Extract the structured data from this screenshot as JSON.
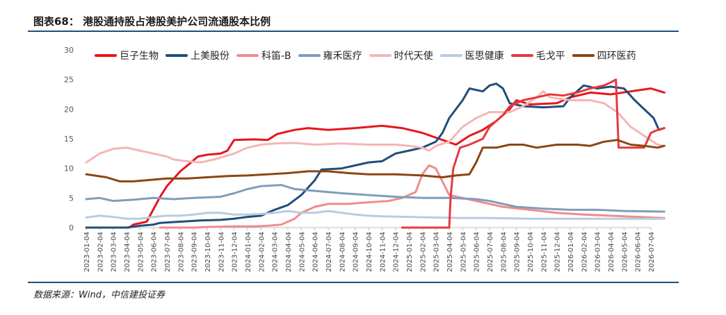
{
  "header": {
    "title": "图表68： 港股通持股占港股美护公司流通股本比例"
  },
  "footer": {
    "source": "数据来源：Wind，中信建投证券"
  },
  "chart_data": {
    "type": "line",
    "title": "图表68： 港股通持股占港股美护公司流通股本比例",
    "ylim": [
      0,
      30
    ],
    "yticks": [
      0,
      5,
      10,
      15,
      20,
      25,
      30
    ],
    "xlabels": [
      "2023-01-04",
      "2023-02-04",
      "2023-03-04",
      "2023-04-04",
      "2023-05-04",
      "2023-06-04",
      "2023-07-04",
      "2023-08-04",
      "2023-09-04",
      "2023-10-04",
      "2023-11-04",
      "2023-12-04",
      "2024-01-04",
      "2024-02-04",
      "2024-03-04",
      "2024-04-04",
      "2024-05-04",
      "2024-06-04",
      "2024-07-04",
      "2024-08-04",
      "2024-09-04",
      "2024-10-04",
      "2024-11-04",
      "2024-12-04",
      "2025-01-04",
      "2025-02-04",
      "2025-03-04",
      "2025-04-04",
      "2025-05-04",
      "2025-06-04",
      "2025-07-04",
      "2025-08-04",
      "2025-09-04",
      "2025-10-04",
      "2025-11-04",
      "2025-12-04",
      "2026-01-04",
      "2026-02-04",
      "2026-03-04",
      "2026-04-04",
      "2026-05-04",
      "2026-06-04",
      "2026-07-04"
    ],
    "legend_position": "top",
    "series": [
      {
        "name": "巨子生物",
        "color": "#e8141c",
        "width": 3,
        "points": [
          [
            3.2,
            0
          ],
          [
            3.5,
            0.5
          ],
          [
            4.5,
            1.0
          ],
          [
            5.5,
            5.2
          ],
          [
            6.0,
            7.0
          ],
          [
            7.0,
            9.5
          ],
          [
            7.8,
            11.0
          ],
          [
            8.3,
            12.0
          ],
          [
            9.0,
            12.3
          ],
          [
            10.0,
            12.5
          ],
          [
            10.5,
            13.0
          ],
          [
            11.0,
            14.8
          ],
          [
            12.5,
            14.9
          ],
          [
            13.5,
            14.8
          ],
          [
            14.2,
            15.8
          ],
          [
            15.5,
            16.5
          ],
          [
            16.5,
            16.8
          ],
          [
            18.0,
            16.5
          ],
          [
            20.0,
            16.8
          ],
          [
            22.0,
            17.2
          ],
          [
            23.5,
            16.8
          ],
          [
            25.0,
            16.0
          ],
          [
            26.5,
            14.8
          ],
          [
            27.5,
            14.0
          ],
          [
            28.5,
            15.5
          ],
          [
            29.5,
            16.5
          ],
          [
            30.5,
            18.0
          ],
          [
            31.5,
            20.0
          ],
          [
            32.0,
            21.5
          ],
          [
            33.0,
            20.8
          ],
          [
            35.0,
            21.0
          ],
          [
            36.0,
            22.0
          ],
          [
            37.5,
            22.8
          ],
          [
            39.0,
            22.5
          ],
          [
            40.5,
            23.0
          ],
          [
            42.0,
            23.5
          ],
          [
            43.0,
            22.8
          ]
        ]
      },
      {
        "name": "上美股份",
        "color": "#1f4e79",
        "width": 3,
        "points": [
          [
            0,
            0
          ],
          [
            3.0,
            0
          ],
          [
            4.0,
            0.3
          ],
          [
            5.0,
            0.5
          ],
          [
            5.5,
            0.8
          ],
          [
            7.0,
            1.0
          ],
          [
            8.5,
            1.2
          ],
          [
            10.0,
            1.3
          ],
          [
            11.0,
            1.5
          ],
          [
            12.0,
            1.8
          ],
          [
            13.0,
            2.0
          ],
          [
            14.0,
            3.0
          ],
          [
            15.0,
            3.8
          ],
          [
            16.0,
            5.5
          ],
          [
            17.0,
            8.0
          ],
          [
            17.5,
            9.8
          ],
          [
            19.0,
            10.0
          ],
          [
            20.0,
            10.5
          ],
          [
            21.0,
            11.0
          ],
          [
            22.0,
            11.2
          ],
          [
            23.0,
            12.5
          ],
          [
            24.0,
            13.0
          ],
          [
            25.0,
            13.5
          ],
          [
            26.0,
            14.5
          ],
          [
            26.5,
            16.0
          ],
          [
            27.0,
            18.5
          ],
          [
            28.0,
            21.5
          ],
          [
            28.5,
            23.5
          ],
          [
            29.5,
            23.0
          ],
          [
            30.0,
            24.0
          ],
          [
            30.5,
            24.3
          ],
          [
            31.0,
            23.5
          ],
          [
            31.5,
            21.0
          ],
          [
            32.5,
            20.5
          ],
          [
            34.0,
            20.3
          ],
          [
            35.5,
            20.5
          ],
          [
            36.0,
            22.0
          ],
          [
            37.0,
            24.0
          ],
          [
            38.0,
            23.5
          ],
          [
            39.0,
            23.8
          ],
          [
            40.0,
            23.5
          ],
          [
            40.8,
            21.5
          ],
          [
            41.5,
            20.0
          ],
          [
            42.2,
            18.5
          ],
          [
            42.6,
            16.5
          ],
          [
            43.0,
            16.8
          ]
        ]
      },
      {
        "name": "科笛-B",
        "color": "#f08c8c",
        "width": 3,
        "points": [
          [
            5.5,
            0
          ],
          [
            8.0,
            0
          ],
          [
            9.0,
            0.1
          ],
          [
            11.0,
            0.2
          ],
          [
            12.5,
            0.2
          ],
          [
            13.5,
            0.3
          ],
          [
            14.5,
            0.5
          ],
          [
            15.5,
            1.5
          ],
          [
            16.0,
            2.5
          ],
          [
            17.0,
            3.5
          ],
          [
            18.0,
            4.0
          ],
          [
            19.5,
            4.0
          ],
          [
            20.5,
            4.2
          ],
          [
            22.5,
            4.5
          ],
          [
            23.5,
            5.0
          ],
          [
            24.5,
            6.0
          ],
          [
            25.0,
            9.0
          ],
          [
            25.5,
            10.5
          ],
          [
            26.0,
            10.0
          ],
          [
            27.0,
            5.5
          ],
          [
            28.0,
            5.0
          ],
          [
            29.0,
            4.5
          ],
          [
            30.0,
            4.0
          ],
          [
            31.0,
            3.5
          ],
          [
            33.0,
            3.0
          ],
          [
            35.0,
            2.5
          ],
          [
            37.0,
            2.2
          ],
          [
            39.0,
            2.0
          ],
          [
            41.0,
            1.8
          ],
          [
            43.0,
            1.6
          ]
        ]
      },
      {
        "name": "雍禾医疗",
        "color": "#7f9db9",
        "width": 3,
        "points": [
          [
            0,
            4.8
          ],
          [
            1.0,
            5.0
          ],
          [
            2.0,
            4.5
          ],
          [
            3.5,
            4.7
          ],
          [
            5.0,
            5.0
          ],
          [
            6.5,
            4.8
          ],
          [
            8.0,
            5.0
          ],
          [
            10.0,
            5.2
          ],
          [
            11.0,
            5.8
          ],
          [
            12.0,
            6.5
          ],
          [
            13.0,
            7.0
          ],
          [
            14.5,
            7.2
          ],
          [
            15.5,
            6.5
          ],
          [
            17.0,
            6.2
          ],
          [
            19.0,
            5.8
          ],
          [
            21.0,
            5.5
          ],
          [
            23.0,
            5.2
          ],
          [
            25.0,
            5.0
          ],
          [
            27.0,
            5.0
          ],
          [
            29.0,
            4.8
          ],
          [
            30.0,
            4.5
          ],
          [
            31.0,
            4.0
          ],
          [
            32.0,
            3.5
          ],
          [
            34.0,
            3.2
          ],
          [
            36.0,
            3.0
          ],
          [
            38.0,
            3.0
          ],
          [
            40.0,
            2.8
          ],
          [
            43.0,
            2.7
          ]
        ]
      },
      {
        "name": "时代天使",
        "color": "#f5b5b5",
        "width": 3,
        "points": [
          [
            0,
            11.0
          ],
          [
            1.0,
            12.5
          ],
          [
            2.0,
            13.3
          ],
          [
            3.0,
            13.5
          ],
          [
            4.0,
            13.0
          ],
          [
            5.0,
            12.5
          ],
          [
            6.0,
            12.0
          ],
          [
            6.5,
            11.5
          ],
          [
            7.5,
            11.2
          ],
          [
            8.5,
            11.0
          ],
          [
            9.5,
            11.5
          ],
          [
            11.0,
            12.5
          ],
          [
            12.0,
            13.5
          ],
          [
            13.0,
            14.0
          ],
          [
            14.0,
            14.2
          ],
          [
            15.5,
            14.3
          ],
          [
            17.0,
            14.0
          ],
          [
            19.0,
            14.2
          ],
          [
            21.0,
            14.0
          ],
          [
            23.0,
            14.0
          ],
          [
            24.0,
            13.8
          ],
          [
            25.0,
            13.5
          ],
          [
            25.5,
            13.0
          ],
          [
            26.0,
            13.8
          ],
          [
            27.0,
            14.5
          ],
          [
            28.0,
            17.0
          ],
          [
            29.0,
            18.5
          ],
          [
            30.0,
            19.5
          ],
          [
            31.5,
            19.5
          ],
          [
            32.5,
            20.5
          ],
          [
            33.5,
            22.0
          ],
          [
            34.0,
            23.0
          ],
          [
            34.5,
            22.0
          ],
          [
            36.0,
            21.5
          ],
          [
            37.5,
            21.5
          ],
          [
            38.5,
            21.0
          ],
          [
            39.5,
            19.5
          ],
          [
            40.5,
            17.0
          ],
          [
            41.5,
            15.5
          ],
          [
            42.5,
            14.0
          ],
          [
            43.0,
            13.8
          ]
        ]
      },
      {
        "name": "医思健康",
        "color": "#b8cce0",
        "width": 3,
        "points": [
          [
            0,
            1.7
          ],
          [
            1.0,
            2.0
          ],
          [
            2.0,
            1.8
          ],
          [
            3.0,
            1.5
          ],
          [
            4.0,
            1.5
          ],
          [
            5.0,
            1.8
          ],
          [
            6.0,
            2.0
          ],
          [
            7.0,
            2.0
          ],
          [
            8.0,
            2.2
          ],
          [
            9.0,
            2.5
          ],
          [
            10.0,
            2.5
          ],
          [
            11.0,
            2.2
          ],
          [
            12.0,
            2.2
          ],
          [
            13.0,
            2.3
          ],
          [
            14.0,
            2.5
          ],
          [
            15.0,
            2.8
          ],
          [
            16.0,
            2.5
          ],
          [
            17.0,
            2.5
          ],
          [
            18.0,
            2.8
          ],
          [
            19.0,
            2.5
          ],
          [
            20.0,
            2.2
          ],
          [
            21.0,
            2.0
          ],
          [
            22.0,
            1.9
          ],
          [
            24.0,
            1.8
          ],
          [
            26.0,
            1.7
          ],
          [
            28.0,
            1.6
          ],
          [
            30.0,
            1.6
          ],
          [
            33.0,
            1.5
          ],
          [
            36.0,
            1.5
          ],
          [
            39.0,
            1.5
          ],
          [
            43.0,
            1.5
          ]
        ]
      },
      {
        "name": "毛戈平",
        "color": "#e8373f",
        "width": 3,
        "points": [
          [
            23.5,
            0
          ],
          [
            26.8,
            0
          ],
          [
            27.0,
            0
          ],
          [
            27.1,
            5.0
          ],
          [
            27.3,
            10.0
          ],
          [
            27.8,
            13.5
          ],
          [
            28.5,
            14.0
          ],
          [
            29.5,
            15.0
          ],
          [
            30.0,
            17.0
          ],
          [
            30.5,
            18.0
          ],
          [
            31.0,
            19.0
          ],
          [
            31.5,
            20.5
          ],
          [
            32.5,
            21.5
          ],
          [
            33.5,
            22.0
          ],
          [
            34.5,
            22.5
          ],
          [
            35.5,
            22.3
          ],
          [
            36.5,
            22.8
          ],
          [
            37.5,
            23.5
          ],
          [
            38.5,
            24.0
          ],
          [
            39.0,
            24.5
          ],
          [
            39.4,
            25.0
          ],
          [
            39.5,
            19.0
          ],
          [
            39.6,
            13.5
          ],
          [
            40.5,
            13.5
          ],
          [
            41.5,
            13.5
          ],
          [
            42.0,
            16.0
          ],
          [
            42.5,
            16.5
          ],
          [
            43.0,
            16.8
          ]
        ]
      },
      {
        "name": "四环医药",
        "color": "#8b4513",
        "width": 3,
        "points": [
          [
            0,
            9.0
          ],
          [
            1.5,
            8.5
          ],
          [
            2.5,
            7.8
          ],
          [
            3.5,
            7.8
          ],
          [
            4.5,
            8.0
          ],
          [
            6.0,
            8.3
          ],
          [
            7.5,
            8.3
          ],
          [
            9.0,
            8.5
          ],
          [
            10.5,
            8.7
          ],
          [
            12.0,
            8.8
          ],
          [
            13.5,
            9.0
          ],
          [
            15.0,
            9.2
          ],
          [
            16.5,
            9.5
          ],
          [
            18.0,
            9.5
          ],
          [
            19.5,
            9.2
          ],
          [
            21.0,
            9.0
          ],
          [
            23.0,
            9.0
          ],
          [
            25.0,
            8.8
          ],
          [
            26.5,
            8.5
          ],
          [
            27.5,
            8.8
          ],
          [
            28.5,
            9.0
          ],
          [
            29.0,
            11.0
          ],
          [
            29.5,
            13.5
          ],
          [
            30.5,
            13.5
          ],
          [
            31.5,
            14.0
          ],
          [
            32.5,
            14.0
          ],
          [
            33.5,
            13.5
          ],
          [
            35.0,
            14.0
          ],
          [
            36.5,
            14.0
          ],
          [
            37.5,
            13.8
          ],
          [
            38.5,
            14.5
          ],
          [
            39.5,
            14.8
          ],
          [
            40.5,
            14.0
          ],
          [
            41.5,
            13.8
          ],
          [
            42.5,
            13.5
          ],
          [
            43.0,
            13.8
          ]
        ]
      }
    ]
  }
}
